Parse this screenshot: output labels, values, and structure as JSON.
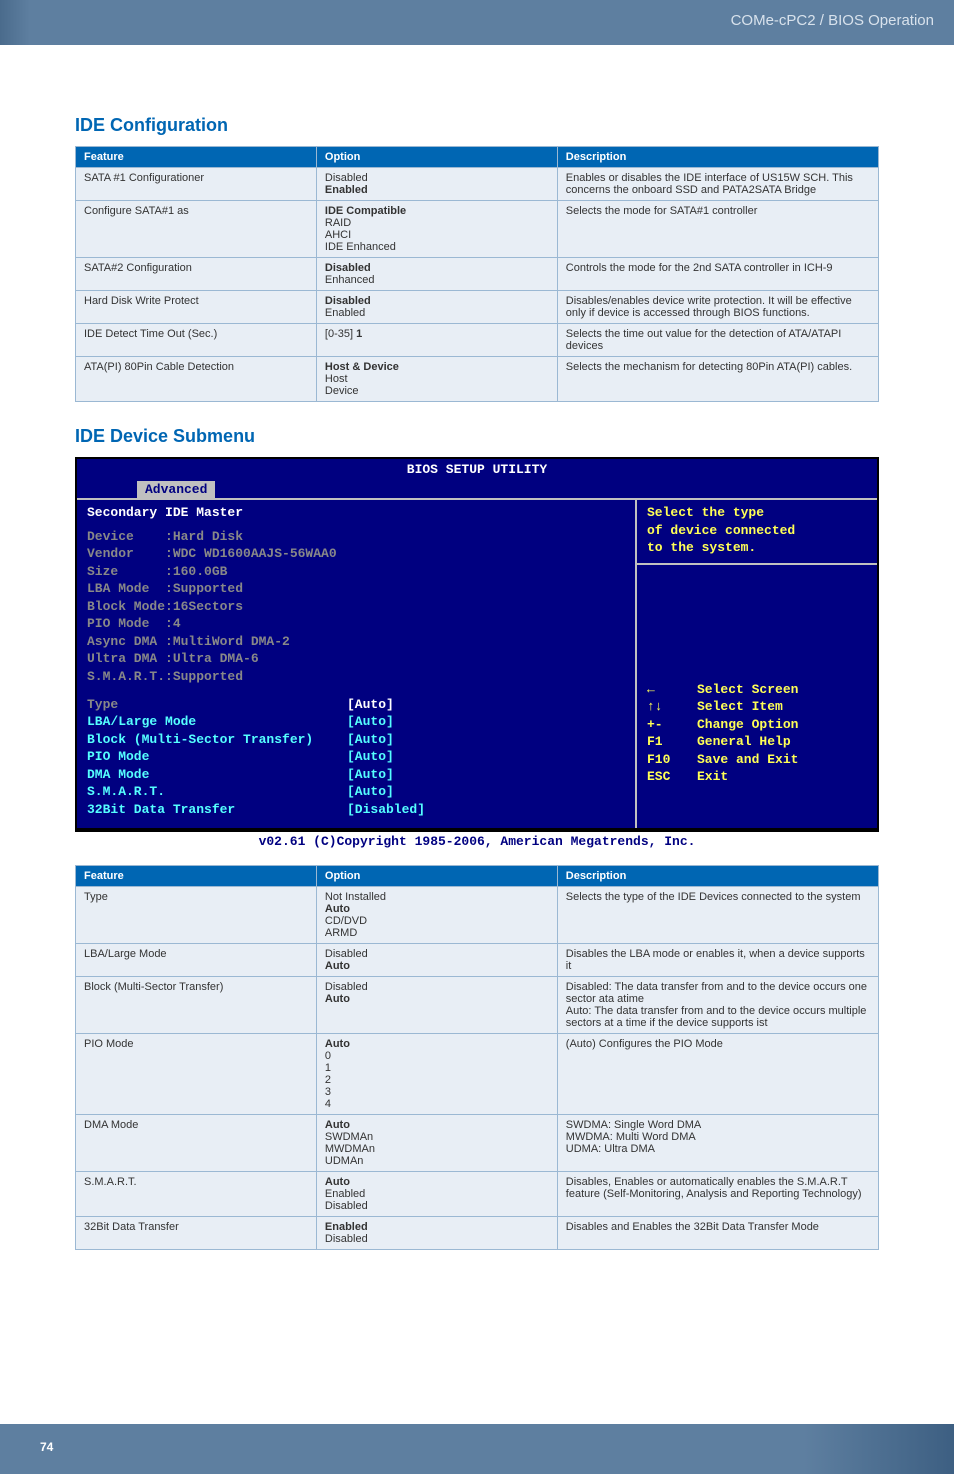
{
  "banner": {
    "doc_title": "COMe-cPC2 / BIOS Operation"
  },
  "section1": {
    "title": "IDE Configuration",
    "headers": [
      "Feature",
      "Option",
      "Description"
    ],
    "rows": [
      {
        "feature": "SATA #1 Configurationer",
        "option": "Disabled\n**Enabled**",
        "desc": "Enables or disables the IDE interface of US15W SCH. This concerns the onboard SSD and PATA2SATA Bridge"
      },
      {
        "feature": "Configure SATA#1 as",
        "option": "**IDE Compatible**\nRAID\nAHCI\nIDE Enhanced",
        "desc": "Selects the mode for SATA#1 controller"
      },
      {
        "feature": "SATA#2 Configuration",
        "option": "**Disabled**\nEnhanced",
        "desc": "Controls the mode for the 2nd SATA controller in ICH-9"
      },
      {
        "feature": "Hard Disk Write Protect",
        "option": "**Disabled**\nEnabled",
        "desc": "Disables/enables device write protection. It will be effective only if device is accessed through BIOS functions."
      },
      {
        "feature": "IDE Detect Time Out (Sec.)",
        "option": "[0-35] **1**",
        "desc": "Selects the time out value for the detection of ATA/ATAPI devices"
      },
      {
        "feature": "ATA(PI) 80Pin Cable Detection",
        "option": "**Host & Device**\nHost\nDevice",
        "desc": "Selects the mechanism for detecting 80Pin ATA(PI) cables."
      }
    ]
  },
  "section2": {
    "title": "IDE Device Submenu"
  },
  "bios": {
    "title": "BIOS SETUP UTILITY",
    "tab": "Advanced",
    "heading": "Secondary IDE Master",
    "info": [
      [
        "Device",
        ":Hard Disk"
      ],
      [
        "Vendor",
        ":WDC WD1600AAJS-56WAA0"
      ],
      [
        "Size",
        ":160.0GB"
      ],
      [
        "LBA Mode",
        ":Supported"
      ],
      [
        "Block Mode",
        ":16Sectors"
      ],
      [
        "PIO Mode",
        ":4"
      ],
      [
        "Async DMA",
        ":MultiWord DMA-2"
      ],
      [
        "Ultra DMA",
        ":Ultra DMA-6"
      ],
      [
        "S.M.A.R.T.",
        ":Supported"
      ]
    ],
    "settings": [
      [
        "Type",
        "[Auto]",
        true
      ],
      [
        "LBA/Large Mode",
        "[Auto]",
        false
      ],
      [
        "Block (Multi-Sector Transfer)",
        "[Auto]",
        false
      ],
      [
        "PIO Mode",
        "[Auto]",
        false
      ],
      [
        "DMA Mode",
        "[Auto]",
        false
      ],
      [
        "S.M.A.R.T.",
        "[Auto]",
        false
      ],
      [
        "32Bit Data Transfer",
        "[Disabled]",
        false
      ]
    ],
    "help": "Select the type\nof device connected\nto the system.",
    "nav": [
      [
        "←",
        "Select Screen"
      ],
      [
        "↑↓",
        "Select Item"
      ],
      [
        "+-",
        "Change Option"
      ],
      [
        "F1",
        "General Help"
      ],
      [
        "F10",
        "Save and Exit"
      ],
      [
        "ESC",
        "Exit"
      ]
    ],
    "footer": "v02.61 (C)Copyright 1985-2006, American Megatrends, Inc."
  },
  "section3": {
    "headers": [
      "Feature",
      "Option",
      "Description"
    ],
    "rows": [
      {
        "feature": "Type",
        "option": "Not Installed\n**Auto**\nCD/DVD\nARMD",
        "desc": "Selects the type of the IDE Devices connected to the system"
      },
      {
        "feature": "LBA/Large Mode",
        "option": "Disabled\n**Auto**",
        "desc": "Disables the LBA mode or enables it, when a device supports it"
      },
      {
        "feature": "Block (Multi-Sector Transfer)",
        "option": "Disabled\n**Auto**",
        "desc": "Disabled: The data transfer from and to the device occurs one sector ata atime\nAuto: The data transfer from and to the device occurs multiple sectors at a time if the device supports ist"
      },
      {
        "feature": "PIO Mode",
        "option": "**Auto**\n0\n1\n2\n3\n4",
        "desc": "(Auto) Configures the PIO Mode"
      },
      {
        "feature": "DMA Mode",
        "option": "**Auto**\nSWDMAn\nMWDMAn\nUDMAn",
        "desc": "SWDMA: Single Word DMA\nMWDMA: Multi Word DMA\nUDMA: Ultra DMA"
      },
      {
        "feature": "S.M.A.R.T.",
        "option": "**Auto**\nEnabled\nDisabled",
        "desc": "Disables, Enables or automatically enables the S.M.A.R.T feature (Self-Monitoring, Analysis and Reporting Technology)"
      },
      {
        "feature": "32Bit Data Transfer",
        "option": "**Enabled**\nDisabled",
        "desc": "Disables and Enables the 32Bit Data Transfer Mode"
      }
    ]
  },
  "page_number": "74"
}
